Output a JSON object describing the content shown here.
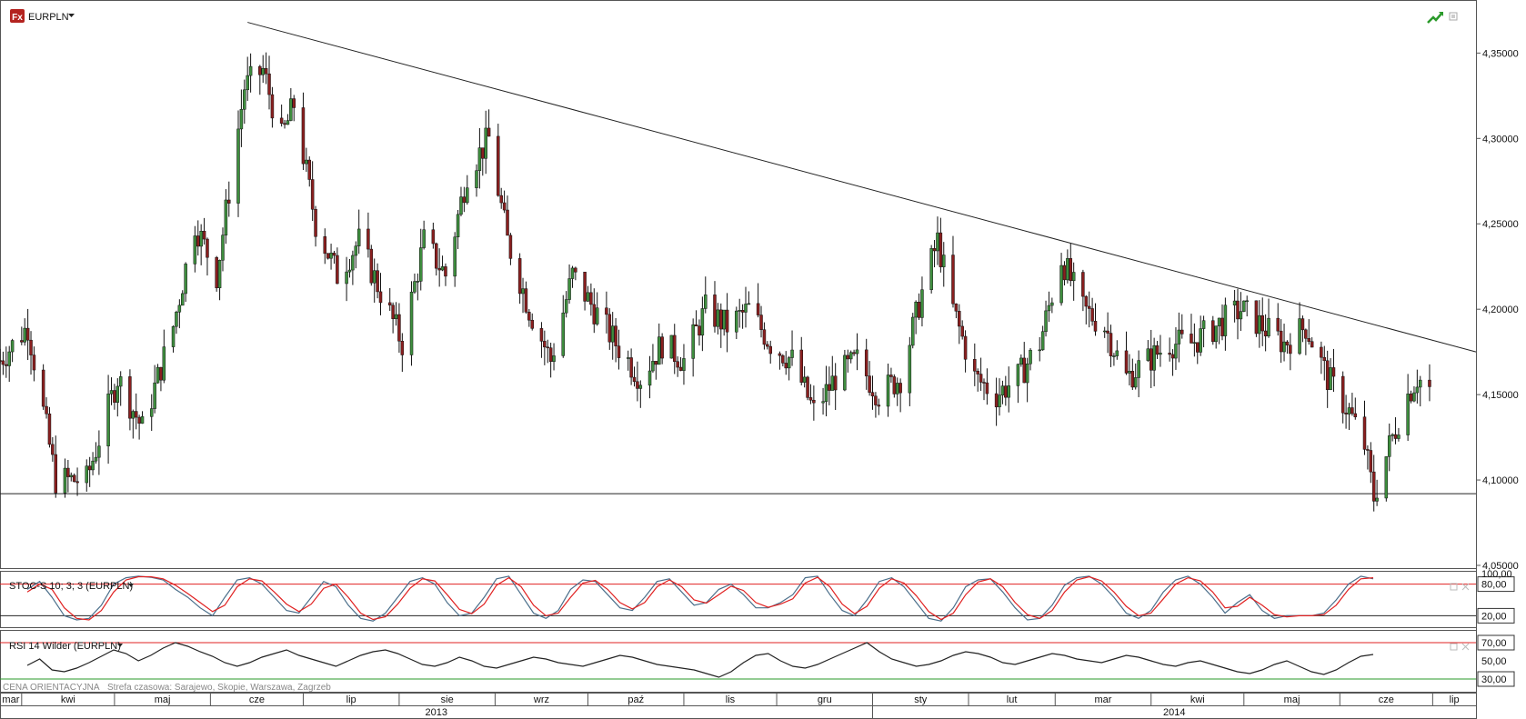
{
  "header": {
    "symbol": "EURPLN",
    "logo_text": "Fx",
    "icons": [
      "chart-trend-icon",
      "window-restore-icon"
    ]
  },
  "colors": {
    "up": "#3e8e3e",
    "down": "#8a1f1f",
    "stoch_k": "#4a6e8a",
    "stoch_d": "#e02020",
    "rsi": "#222222",
    "level_line": "#e02020",
    "rsi_low_line": "#2a9a2a"
  },
  "footer": {
    "note": "CENA ORIENTACYJNA",
    "timezone": "Strefa czasowa: Sarajewo, Skopie, Warszawa, Zagrzeb"
  },
  "chart_data": [
    {
      "type": "candlestick",
      "name": "EURPLN",
      "ylim": [
        4.05,
        4.38
      ],
      "yticks": [
        4.05,
        4.1,
        4.15,
        4.2,
        4.25,
        4.3,
        4.35
      ],
      "ytick_labels": [
        "4,05000",
        "4,10000",
        "4,15000",
        "4,20000",
        "4,25000",
        "4,30000",
        "4,35000"
      ],
      "x_start": "2013-03-25",
      "x_end": "2014-07-15",
      "months": [
        "mar",
        "kwi",
        "maj",
        "cze",
        "lip",
        "sie",
        "wrz",
        "paź",
        "lis",
        "gru",
        "sty",
        "lut",
        "mar",
        "kwi",
        "maj",
        "cze",
        "lip"
      ],
      "month_starts": [
        "2013-03-25",
        "2013-04-01",
        "2013-05-01",
        "2013-06-01",
        "2013-07-01",
        "2013-08-01",
        "2013-09-01",
        "2013-10-01",
        "2013-11-01",
        "2013-12-01",
        "2014-01-01",
        "2014-02-01",
        "2014-03-01",
        "2014-04-01",
        "2014-05-01",
        "2014-06-01",
        "2014-07-01"
      ],
      "years": [
        "2013",
        "2014"
      ],
      "close_keypoints": [
        [
          "2013-03-25",
          4.17
        ],
        [
          "2013-04-03",
          4.19
        ],
        [
          "2013-04-12",
          4.1
        ],
        [
          "2013-04-22",
          4.1
        ],
        [
          "2013-05-02",
          4.16
        ],
        [
          "2013-05-10",
          4.13
        ],
        [
          "2013-05-20",
          4.19
        ],
        [
          "2013-05-27",
          4.25
        ],
        [
          "2013-06-03",
          4.22
        ],
        [
          "2013-06-12",
          4.33
        ],
        [
          "2013-06-18",
          4.34
        ],
        [
          "2013-06-24",
          4.3
        ],
        [
          "2013-06-28",
          4.32
        ],
        [
          "2013-07-05",
          4.25
        ],
        [
          "2013-07-12",
          4.22
        ],
        [
          "2013-07-19",
          4.24
        ],
        [
          "2013-07-26",
          4.21
        ],
        [
          "2013-08-02",
          4.18
        ],
        [
          "2013-08-09",
          4.24
        ],
        [
          "2013-08-16",
          4.22
        ],
        [
          "2013-08-23",
          4.28
        ],
        [
          "2013-08-30",
          4.3
        ],
        [
          "2013-09-05",
          4.24
        ],
        [
          "2013-09-12",
          4.2
        ],
        [
          "2013-09-19",
          4.17
        ],
        [
          "2013-09-26",
          4.22
        ],
        [
          "2013-10-03",
          4.2
        ],
        [
          "2013-10-10",
          4.18
        ],
        [
          "2013-10-18",
          4.16
        ],
        [
          "2013-10-25",
          4.18
        ],
        [
          "2013-11-01",
          4.17
        ],
        [
          "2013-11-08",
          4.2
        ],
        [
          "2013-11-15",
          4.19
        ],
        [
          "2013-11-22",
          4.2
        ],
        [
          "2013-11-29",
          4.18
        ],
        [
          "2013-12-06",
          4.17
        ],
        [
          "2013-12-13",
          4.14
        ],
        [
          "2013-12-20",
          4.16
        ],
        [
          "2013-12-27",
          4.17
        ],
        [
          "2014-01-03",
          4.15
        ],
        [
          "2014-01-10",
          4.16
        ],
        [
          "2014-01-17",
          4.21
        ],
        [
          "2014-01-22",
          4.24
        ],
        [
          "2014-01-27",
          4.2
        ],
        [
          "2014-02-03",
          4.16
        ],
        [
          "2014-02-10",
          4.15
        ],
        [
          "2014-02-17",
          4.16
        ],
        [
          "2014-02-24",
          4.18
        ],
        [
          "2014-03-03",
          4.23
        ],
        [
          "2014-03-10",
          4.2
        ],
        [
          "2014-03-17",
          4.19
        ],
        [
          "2014-03-24",
          4.16
        ],
        [
          "2014-03-31",
          4.17
        ],
        [
          "2014-04-07",
          4.18
        ],
        [
          "2014-04-14",
          4.18
        ],
        [
          "2014-04-22",
          4.19
        ],
        [
          "2014-04-30",
          4.2
        ],
        [
          "2014-05-07",
          4.19
        ],
        [
          "2014-05-14",
          4.18
        ],
        [
          "2014-05-21",
          4.19
        ],
        [
          "2014-05-28",
          4.16
        ],
        [
          "2014-06-04",
          4.14
        ],
        [
          "2014-06-09",
          4.12
        ],
        [
          "2014-06-12",
          4.09
        ],
        [
          "2014-06-17",
          4.12
        ],
        [
          "2014-06-23",
          4.15
        ],
        [
          "2014-06-26",
          4.16
        ],
        [
          "2014-06-30",
          4.153
        ]
      ],
      "lines": [
        {
          "name": "resistance-trendline",
          "from": [
            "2013-06-13",
            4.368
          ],
          "to": [
            "2014-07-15",
            4.175
          ]
        },
        {
          "name": "support-line",
          "from": [
            "2013-03-25",
            4.092
          ],
          "to": [
            "2014-07-15",
            4.092
          ]
        }
      ]
    },
    {
      "type": "line",
      "label": "STOC-S 10; 3; 3 (EURPLN)",
      "ylim": [
        0,
        100
      ],
      "levels": [
        80,
        20
      ],
      "level_labels": [
        "80,00",
        "20,00"
      ],
      "top_tick": "100,00",
      "series": [
        {
          "role": "%K",
          "values": [
            70,
            85,
            55,
            20,
            12,
            15,
            40,
            80,
            92,
            95,
            93,
            88,
            70,
            55,
            35,
            20,
            55,
            88,
            92,
            80,
            55,
            30,
            25,
            55,
            85,
            75,
            40,
            15,
            10,
            25,
            55,
            85,
            92,
            80,
            45,
            20,
            25,
            55,
            90,
            95,
            60,
            25,
            15,
            30,
            70,
            88,
            85,
            60,
            35,
            30,
            55,
            85,
            90,
            65,
            40,
            45,
            70,
            80,
            60,
            35,
            35,
            45,
            60,
            92,
            95,
            60,
            30,
            20,
            50,
            85,
            92,
            75,
            45,
            15,
            10,
            35,
            75,
            88,
            90,
            65,
            35,
            12,
            15,
            40,
            78,
            92,
            95,
            80,
            55,
            25,
            15,
            30,
            65,
            88,
            95,
            80,
            55,
            25,
            45,
            60,
            30,
            15,
            20,
            20,
            20,
            25,
            50,
            80,
            95,
            90
          ]
        },
        {
          "role": "%D",
          "values": [
            65,
            80,
            70,
            35,
            15,
            12,
            30,
            65,
            88,
            94,
            94,
            90,
            78,
            62,
            45,
            28,
            40,
            75,
            90,
            86,
            65,
            42,
            28,
            42,
            72,
            80,
            55,
            25,
            13,
            18,
            42,
            72,
            90,
            86,
            60,
            32,
            24,
            42,
            78,
            92,
            75,
            40,
            20,
            25,
            55,
            82,
            87,
            70,
            45,
            33,
            45,
            75,
            88,
            75,
            50,
            44,
            60,
            76,
            68,
            45,
            36,
            42,
            52,
            82,
            93,
            75,
            42,
            24,
            38,
            72,
            90,
            82,
            58,
            28,
            13,
            25,
            60,
            84,
            90,
            75,
            45,
            22,
            15,
            30,
            65,
            88,
            94,
            86,
            65,
            38,
            20,
            25,
            52,
            80,
            92,
            86,
            65,
            35,
            38,
            55,
            40,
            22,
            18,
            20,
            20,
            22,
            40,
            70,
            90,
            92
          ]
        }
      ]
    },
    {
      "type": "line",
      "label": "RSI 14 Wilder (EURPLN)",
      "ylim": [
        20,
        80
      ],
      "levels": [
        70,
        30
      ],
      "level_labels": [
        "70,00",
        "30,00"
      ],
      "mid_label": "50,00",
      "series": [
        {
          "role": "RSI",
          "values": [
            45,
            52,
            40,
            38,
            42,
            48,
            55,
            62,
            58,
            50,
            56,
            64,
            70,
            66,
            60,
            55,
            48,
            44,
            48,
            54,
            58,
            62,
            56,
            52,
            48,
            44,
            50,
            56,
            60,
            62,
            58,
            52,
            46,
            44,
            48,
            54,
            50,
            44,
            42,
            46,
            50,
            54,
            52,
            48,
            46,
            44,
            48,
            52,
            56,
            54,
            50,
            46,
            44,
            42,
            40,
            36,
            32,
            38,
            48,
            56,
            58,
            50,
            44,
            42,
            46,
            52,
            58,
            64,
            70,
            60,
            52,
            48,
            44,
            46,
            50,
            56,
            60,
            58,
            54,
            48,
            46,
            50,
            54,
            58,
            56,
            52,
            50,
            48,
            52,
            56,
            54,
            50,
            46,
            44,
            48,
            50,
            46,
            42,
            38,
            36,
            40,
            46,
            50,
            44,
            38,
            35,
            40,
            48,
            55,
            57
          ]
        }
      ]
    }
  ]
}
